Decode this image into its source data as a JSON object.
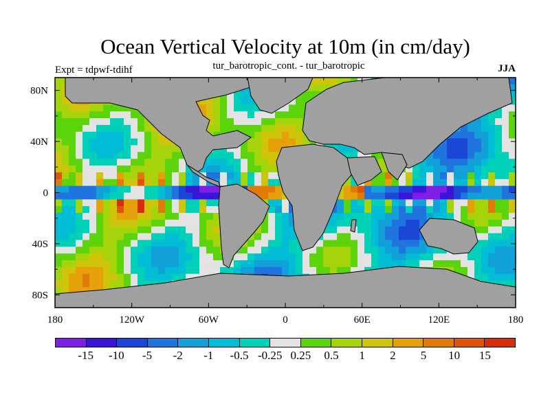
{
  "title": "Ocean Vertical Velocity at 10m (in cm/day)",
  "subtitle": "tur_barotropic_cont. - tur_barotropic",
  "left_string": "Expt = tdpwf-tdihf",
  "right_string": "JJA",
  "chart_data": {
    "type": "heatmap",
    "title": "Ocean Vertical Velocity at 10m (in cm/day)",
    "subtitle": "tur_barotropic_cont. - tur_barotropic",
    "x_ticks": [
      "180",
      "120W",
      "60W",
      "0",
      "60E",
      "120E",
      "180"
    ],
    "y_ticks": [
      "80N",
      "40N",
      "0",
      "40S",
      "80S"
    ],
    "xlim": [
      -180,
      180
    ],
    "ylim": [
      -90,
      90
    ],
    "legend_position": "bottom",
    "colorbar_labels": [
      "-15",
      "-10",
      "-5",
      "-2",
      "-1",
      "-0.5",
      "-0.25",
      "0.25",
      "0.5",
      "1",
      "2",
      "5",
      "10",
      "15"
    ],
    "colorbar_colors": [
      "#7f1fe6",
      "#3a14d8",
      "#1c47d6",
      "#1f74dd",
      "#12a0d8",
      "#00bcd4",
      "#00d0b8",
      "#e3e3e3",
      "#5cd40c",
      "#a6d40a",
      "#cfc40a",
      "#e6a00a",
      "#e27a0a",
      "#e0540a",
      "#d42e0a"
    ],
    "land_color": "#a0a0a0"
  }
}
